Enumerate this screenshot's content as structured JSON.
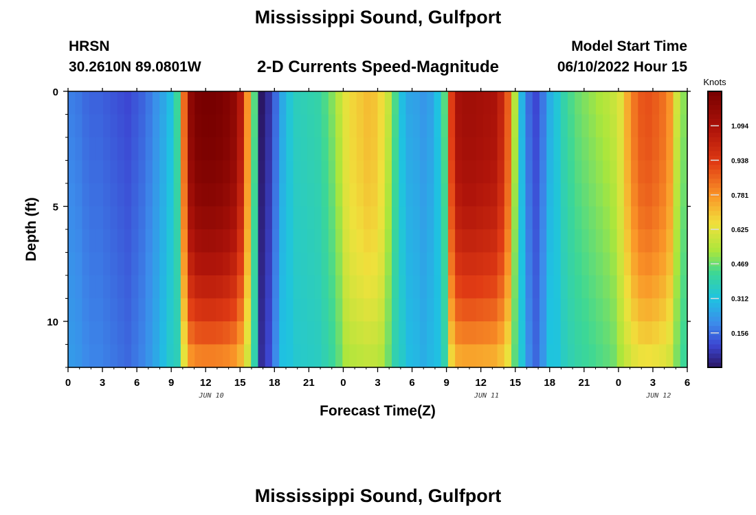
{
  "header": {
    "title": "Mississippi Sound, Gulfport",
    "station_id": "HRSN",
    "station_coords": "30.2610N  89.0801W",
    "subtitle": "2-D Currents Speed-Magnitude",
    "model_label": "Model Start Time",
    "model_time": "06/10/2022 Hour 15"
  },
  "footer": {
    "title": "Mississippi Sound, Gulfport"
  },
  "chart_data": {
    "type": "heatmap",
    "title": "2-D Currents Speed-Magnitude",
    "xlabel": "Forecast Time(Z)",
    "ylabel": "Depth (ft)",
    "x_range_hours": [
      0,
      54
    ],
    "x_ticks": [
      {
        "h": 0,
        "label": "0"
      },
      {
        "h": 3,
        "label": "3"
      },
      {
        "h": 6,
        "label": "6"
      },
      {
        "h": 9,
        "label": "9"
      },
      {
        "h": 12,
        "label": "12"
      },
      {
        "h": 15,
        "label": "15"
      },
      {
        "h": 18,
        "label": "18"
      },
      {
        "h": 21,
        "label": "21"
      },
      {
        "h": 24,
        "label": "0"
      },
      {
        "h": 27,
        "label": "3"
      },
      {
        "h": 30,
        "label": "6"
      },
      {
        "h": 33,
        "label": "9"
      },
      {
        "h": 36,
        "label": "12"
      },
      {
        "h": 39,
        "label": "15"
      },
      {
        "h": 42,
        "label": "18"
      },
      {
        "h": 45,
        "label": "21"
      },
      {
        "h": 48,
        "label": "0"
      },
      {
        "h": 51,
        "label": "3"
      },
      {
        "h": 54,
        "label": "6"
      }
    ],
    "date_labels": [
      {
        "h": 12.5,
        "label": "JUN 10"
      },
      {
        "h": 36.5,
        "label": "JUN 11"
      },
      {
        "h": 51.5,
        "label": "JUN 12"
      }
    ],
    "ylim": [
      0,
      12
    ],
    "y_ticks": [
      {
        "v": 0,
        "label": "0"
      },
      {
        "v": 5,
        "label": "5"
      },
      {
        "v": 10,
        "label": "10"
      }
    ],
    "colorbar": {
      "label": "Knots",
      "range": [
        0,
        1.25
      ],
      "ticks": [
        0.156,
        0.312,
        0.469,
        0.625,
        0.781,
        0.938,
        1.094
      ],
      "tick_labels": [
        "0.156",
        "0.312",
        "0.469",
        "0.625",
        "0.781",
        "0.938",
        "1.094"
      ]
    },
    "surface_speed_knots": [
      0.18,
      0.17,
      0.15,
      0.14,
      0.14,
      0.13,
      0.12,
      0.11,
      0.1,
      0.12,
      0.14,
      0.17,
      0.21,
      0.25,
      0.3,
      0.42,
      0.85,
      1.18,
      1.24,
      1.25,
      1.25,
      1.24,
      1.22,
      1.18,
      1.06,
      0.78,
      0.45,
      0.0,
      0.05,
      0.15,
      0.26,
      0.33,
      0.37,
      0.38,
      0.39,
      0.4,
      0.44,
      0.49,
      0.56,
      0.63,
      0.67,
      0.69,
      0.71,
      0.7,
      0.66,
      0.58,
      0.44,
      0.3,
      0.25,
      0.24,
      0.22,
      0.24,
      0.31,
      0.45,
      0.93,
      1.1,
      1.12,
      1.12,
      1.11,
      1.1,
      1.09,
      1.02,
      0.87,
      0.55,
      0.28,
      0.15,
      0.1,
      0.17,
      0.27,
      0.33,
      0.4,
      0.44,
      0.47,
      0.49,
      0.51,
      0.53,
      0.55,
      0.58,
      0.62,
      0.74,
      0.83,
      0.88,
      0.89,
      0.87,
      0.84,
      0.78,
      0.6,
      0.5
    ]
  }
}
